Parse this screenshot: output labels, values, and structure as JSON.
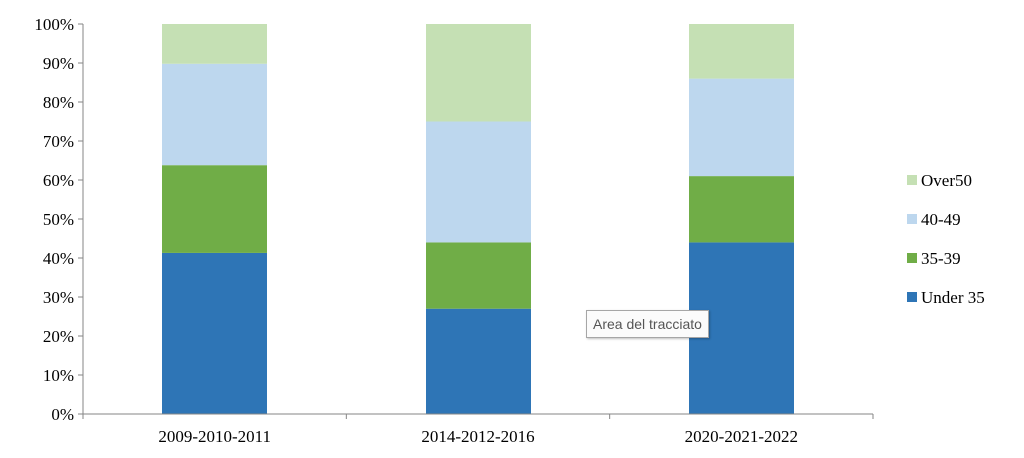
{
  "chart_data": {
    "type": "bar",
    "stacked": true,
    "percent_stacked": true,
    "categories": [
      "2009-2010-2011",
      "2014-2012-2016",
      "2020-2021-2022"
    ],
    "series": [
      {
        "name": "Under 35",
        "values": [
          41.3,
          27.0,
          44.0
        ],
        "color": "#2e75b6"
      },
      {
        "name": "35-39",
        "values": [
          22.5,
          17.0,
          17.0
        ],
        "color": "#70ad47"
      },
      {
        "name": "40-49",
        "values": [
          26.0,
          31.0,
          25.0
        ],
        "color": "#bdd7ee"
      },
      {
        "name": "Over50",
        "values": [
          10.2,
          25.0,
          14.0
        ],
        "color": "#c5e0b4"
      }
    ],
    "yticks": [
      "0%",
      "10%",
      "20%",
      "30%",
      "40%",
      "50%",
      "60%",
      "70%",
      "80%",
      "90%",
      "100%"
    ],
    "ylim": [
      0,
      100
    ],
    "grid": false,
    "legend_placement": "right",
    "legend_order": [
      "Over50",
      "40-49",
      "35-39",
      "Under 35"
    ]
  },
  "tooltip": {
    "text": "Area del tracciato"
  }
}
